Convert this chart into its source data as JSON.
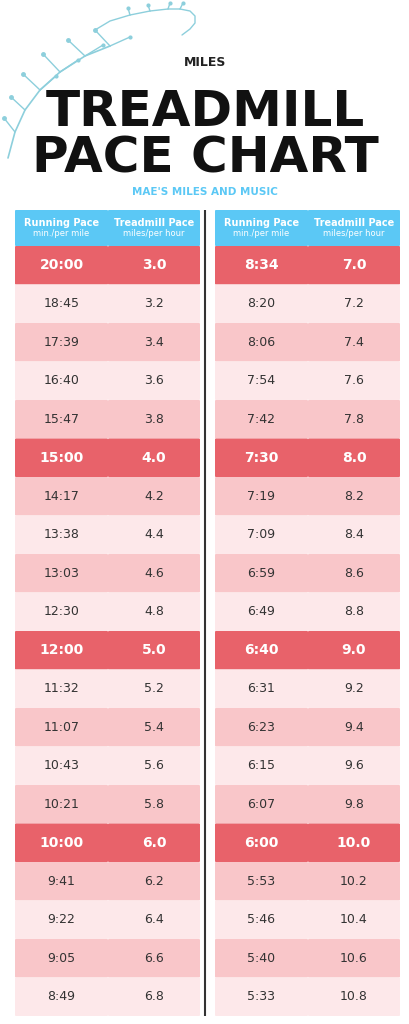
{
  "title_top": "MILES",
  "title_main": "TREADMILL\nPACE CHART",
  "title_sub": "MAE'S MILES AND MUSIC",
  "header_bg": "#5BC8F5",
  "header_text": "#ffffff",
  "highlight_bg": "#E8626A",
  "highlight_text": "#ffffff",
  "normal_bg_dark": "#F9C6C9",
  "normal_bg_light": "#FDE8EA",
  "normal_text": "#333333",
  "col1_header": [
    "Running Pace",
    "min./per mile"
  ],
  "col2_header": [
    "Treadmill Pace",
    "miles/per hour"
  ],
  "left_data": [
    [
      "20:00",
      "3.0",
      true
    ],
    [
      "18:45",
      "3.2",
      false
    ],
    [
      "17:39",
      "3.4",
      false
    ],
    [
      "16:40",
      "3.6",
      false
    ],
    [
      "15:47",
      "3.8",
      false
    ],
    [
      "15:00",
      "4.0",
      true
    ],
    [
      "14:17",
      "4.2",
      false
    ],
    [
      "13:38",
      "4.4",
      false
    ],
    [
      "13:03",
      "4.6",
      false
    ],
    [
      "12:30",
      "4.8",
      false
    ],
    [
      "12:00",
      "5.0",
      true
    ],
    [
      "11:32",
      "5.2",
      false
    ],
    [
      "11:07",
      "5.4",
      false
    ],
    [
      "10:43",
      "5.6",
      false
    ],
    [
      "10:21",
      "5.8",
      false
    ],
    [
      "10:00",
      "6.0",
      true
    ],
    [
      "9:41",
      "6.2",
      false
    ],
    [
      "9:22",
      "6.4",
      false
    ],
    [
      "9:05",
      "6.6",
      false
    ],
    [
      "8:49",
      "6.8",
      false
    ]
  ],
  "right_data": [
    [
      "8:34",
      "7.0",
      true
    ],
    [
      "8:20",
      "7.2",
      false
    ],
    [
      "8:06",
      "7.4",
      false
    ],
    [
      "7:54",
      "7.6",
      false
    ],
    [
      "7:42",
      "7.8",
      false
    ],
    [
      "7:30",
      "8.0",
      true
    ],
    [
      "7:19",
      "8.2",
      false
    ],
    [
      "7:09",
      "8.4",
      false
    ],
    [
      "6:59",
      "8.6",
      false
    ],
    [
      "6:49",
      "8.8",
      false
    ],
    [
      "6:40",
      "9.0",
      true
    ],
    [
      "6:31",
      "9.2",
      false
    ],
    [
      "6:23",
      "9.4",
      false
    ],
    [
      "6:15",
      "9.6",
      false
    ],
    [
      "6:07",
      "9.8",
      false
    ],
    [
      "6:00",
      "10.0",
      true
    ],
    [
      "5:53",
      "10.2",
      false
    ],
    [
      "5:46",
      "10.4",
      false
    ],
    [
      "5:40",
      "10.6",
      false
    ],
    [
      "5:33",
      "10.8",
      false
    ]
  ],
  "teal": "#8DCFDC"
}
